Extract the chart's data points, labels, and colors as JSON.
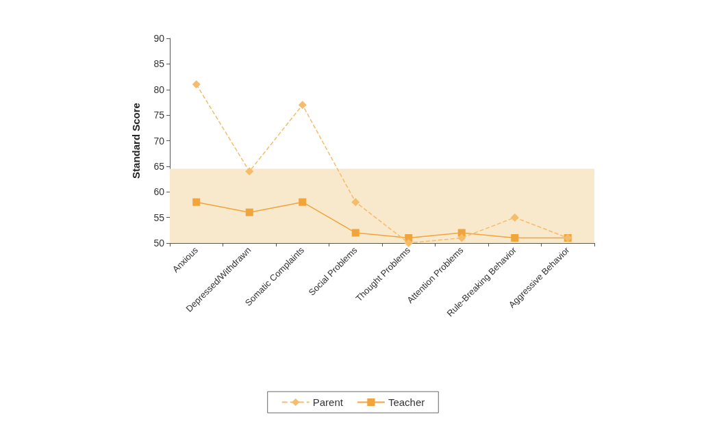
{
  "chart_data": {
    "type": "line",
    "ylabel": "Standard Score",
    "categories": [
      "Anxious",
      "Depressed/Withdrawn",
      "Somatic Complaints",
      "Social Problems",
      "Thought Problems",
      "Attention Problems",
      "Rule-Breaking Behavior",
      "Aggressive Behavior"
    ],
    "series": [
      {
        "name": "Parent",
        "color": "#f5bc6a",
        "marker": "diamond",
        "line_style": "dashed",
        "values": [
          81,
          64,
          77,
          58,
          50,
          51,
          55,
          51
        ]
      },
      {
        "name": "Teacher",
        "color": "#f0a43a",
        "marker": "square",
        "line_style": "solid",
        "values": [
          58,
          56,
          58,
          52,
          51,
          52,
          51,
          51
        ]
      }
    ],
    "ylim": [
      50,
      90
    ],
    "yticks": [
      50,
      55,
      60,
      65,
      70,
      75,
      80,
      85,
      90
    ],
    "bands": [
      {
        "axis": "y",
        "from": 50,
        "to": 64.5,
        "color": "#f8e8cc"
      }
    ],
    "grid": false,
    "legend": "bottom"
  }
}
